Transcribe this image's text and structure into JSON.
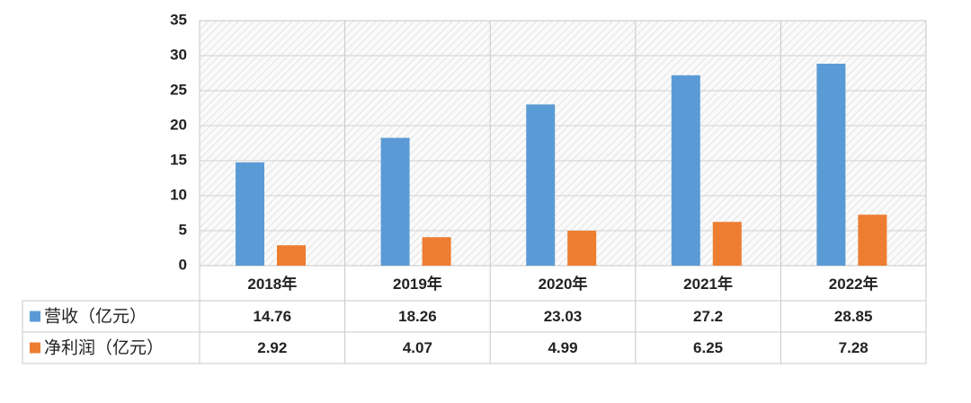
{
  "chart_data": {
    "type": "bar",
    "categories": [
      "2018年",
      "2019年",
      "2020年",
      "2021年",
      "2022年"
    ],
    "series": [
      {
        "name": "营收（亿元）",
        "color": "#5b9bd5",
        "values": [
          14.76,
          18.26,
          23.03,
          27.2,
          28.85
        ]
      },
      {
        "name": "净利润（亿元）",
        "color": "#ed7d31",
        "values": [
          2.92,
          4.07,
          4.99,
          6.25,
          7.28
        ]
      }
    ],
    "ylim": [
      0,
      35
    ],
    "yticks": [
      0,
      5,
      10,
      15,
      20,
      25,
      30,
      35
    ],
    "grid": true
  }
}
